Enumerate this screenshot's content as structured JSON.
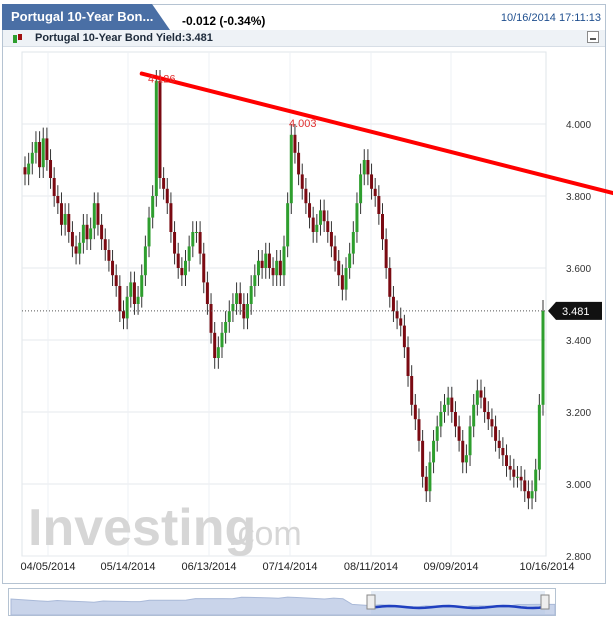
{
  "header": {
    "tab_title": "Portugal 10-Year Bon...",
    "change": "-0.012 (-0.34%)",
    "timestamp": "10/16/2014 17:11:13",
    "legend": "Portugal 10-Year Bond Yield:3.481"
  },
  "watermark": "Investing",
  "watermark_suffix": ".com",
  "colors": {
    "up": "#2e9e2e",
    "down": "#7a0a12",
    "trend": "#ff0000",
    "accent": "#4a6fa5"
  },
  "chart_data": {
    "type": "candlestick",
    "title": "Portugal 10-Year Bond Yield",
    "last_value": "3.481",
    "xlabels": [
      "04/05/2014",
      "05/14/2014",
      "06/13/2014",
      "07/14/2014",
      "08/11/2014",
      "09/09/2014",
      "10/16/2014"
    ],
    "ylabels": [
      "4.000",
      "3.800",
      "3.600",
      "3.400",
      "3.200",
      "3.000",
      "2.800"
    ],
    "ylim": [
      2.8,
      4.2
    ],
    "annotations": [
      "4.126",
      "4.003"
    ],
    "trendline": {
      "from": [
        32,
        4.14
      ],
      "to": [
        180,
        3.76
      ]
    },
    "grid": true,
    "close": [
      3.86,
      3.89,
      3.92,
      3.95,
      3.88,
      3.96,
      3.9,
      3.85,
      3.8,
      3.78,
      3.72,
      3.75,
      3.7,
      3.66,
      3.64,
      3.67,
      3.72,
      3.68,
      3.71,
      3.78,
      3.72,
      3.68,
      3.65,
      3.62,
      3.58,
      3.55,
      3.48,
      3.46,
      3.52,
      3.56,
      3.5,
      3.52,
      3.58,
      3.66,
      3.74,
      3.8,
      4.12,
      3.85,
      3.82,
      3.78,
      3.7,
      3.64,
      3.6,
      3.58,
      3.62,
      3.66,
      3.7,
      3.7,
      3.64,
      3.56,
      3.5,
      3.42,
      3.35,
      3.38,
      3.42,
      3.45,
      3.48,
      3.5,
      3.53,
      3.5,
      3.46,
      3.5,
      3.55,
      3.58,
      3.62,
      3.6,
      3.64,
      3.6,
      3.58,
      3.62,
      3.58,
      3.66,
      3.78,
      3.97,
      3.92,
      3.86,
      3.82,
      3.78,
      3.74,
      3.7,
      3.72,
      3.76,
      3.73,
      3.7,
      3.66,
      3.62,
      3.58,
      3.54,
      3.6,
      3.64,
      3.7,
      3.78,
      3.86,
      3.9,
      3.86,
      3.82,
      3.8,
      3.75,
      3.68,
      3.6,
      3.52,
      3.48,
      3.46,
      3.44,
      3.38,
      3.3,
      3.22,
      3.18,
      3.12,
      3.02,
      2.98,
      3.06,
      3.12,
      3.16,
      3.2,
      3.22,
      3.24,
      3.2,
      3.16,
      3.12,
      3.06,
      3.08,
      3.16,
      3.22,
      3.26,
      3.24,
      3.2,
      3.18,
      3.16,
      3.12,
      3.1,
      3.08,
      3.05,
      3.04,
      3.02,
      3.02,
      3.01,
      2.98,
      2.96,
      2.98,
      3.04,
      3.22,
      3.481
    ]
  }
}
